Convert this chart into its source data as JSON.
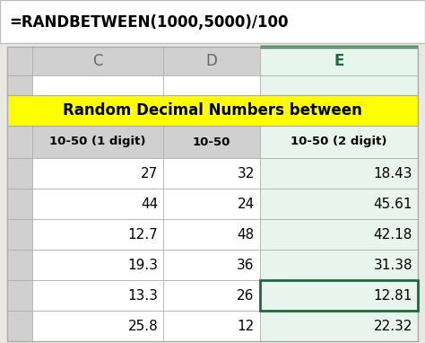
{
  "formula_text": "=RANDBETWEEN(1000,5000)/100",
  "col_headers": [
    "C",
    "D",
    "E"
  ],
  "header_row": [
    "10-50 (1 digit)",
    "10-50",
    "10-50 (2 digit)"
  ],
  "merged_header": "Random Decimal Numbers between",
  "data_rows": [
    [
      "27",
      "32",
      "18.43"
    ],
    [
      "44",
      "24",
      "45.61"
    ],
    [
      "12.7",
      "48",
      "42.18"
    ],
    [
      "19.3",
      "36",
      "31.38"
    ],
    [
      "13.3",
      "26",
      "12.81"
    ],
    [
      "25.8",
      "12",
      "22.32"
    ]
  ],
  "bg_color": "#eae8e3",
  "cell_bg": "#ffffff",
  "header_bg": "#ffff00",
  "subheader_bg": "#d0d0d0",
  "col_e_header_bg": "#e8f4ee",
  "selected_cell_border": "#1a6b3c",
  "grid_color": "#aaaaaa",
  "formula_bar_bg": "#ffffff",
  "formula_bar_border": "#c0c0c0",
  "text_color": "#000000",
  "col_header_color": "#666666",
  "col_e_header_color": "#1a6b3c",
  "fig_w": 4.74,
  "fig_h": 3.82,
  "dpi": 100
}
